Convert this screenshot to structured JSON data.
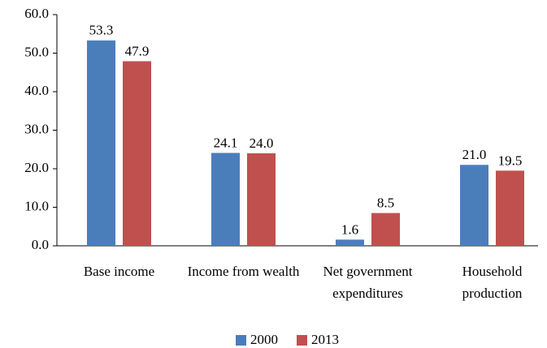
{
  "chart_data": {
    "type": "bar",
    "categories": [
      "Base income",
      "Income from wealth",
      "Net government expenditures",
      "Household production"
    ],
    "series": [
      {
        "name": "2000",
        "color": "#4a7ebb",
        "values": [
          53.3,
          24.1,
          1.6,
          21.0
        ],
        "value_labels": [
          "53.3",
          "24.1",
          "1.6",
          "21.0"
        ]
      },
      {
        "name": "2013",
        "color": "#c0504d",
        "values": [
          47.9,
          24.0,
          8.5,
          19.5
        ],
        "value_labels": [
          "47.9",
          "24.0",
          "8.5",
          "19.5"
        ]
      }
    ],
    "ylim": [
      0,
      60
    ],
    "yticks": [
      {
        "value": 0,
        "label": "0.0"
      },
      {
        "value": 10,
        "label": "10.0"
      },
      {
        "value": 20,
        "label": "20.0"
      },
      {
        "value": 30,
        "label": "30.0"
      },
      {
        "value": 40,
        "label": "40.0"
      },
      {
        "value": 50,
        "label": "50.0"
      },
      {
        "value": 60,
        "label": "60.0"
      }
    ],
    "grid": false,
    "legend": "bottom"
  }
}
